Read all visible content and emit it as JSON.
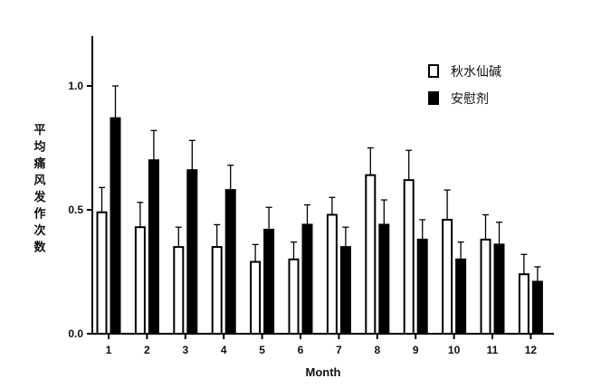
{
  "chart_data": {
    "type": "bar",
    "title": "",
    "xlabel": "Month",
    "ylabel": "平均痛风发作次数",
    "categories": [
      "1",
      "2",
      "3",
      "4",
      "5",
      "6",
      "7",
      "8",
      "9",
      "10",
      "11",
      "12"
    ],
    "ylim": [
      0,
      1.2
    ],
    "yticks": [
      0.0,
      0.5,
      1.0
    ],
    "ytick_labels": [
      "0.0",
      "0.5",
      "1.0"
    ],
    "grid": false,
    "legend_position": "top-right",
    "series": [
      {
        "name": "秋水仙碱",
        "fill": "#ffffff",
        "stroke": "#000000",
        "values": [
          0.49,
          0.43,
          0.35,
          0.35,
          0.29,
          0.3,
          0.48,
          0.64,
          0.62,
          0.46,
          0.38,
          0.24
        ],
        "errors": [
          0.1,
          0.1,
          0.08,
          0.09,
          0.07,
          0.07,
          0.07,
          0.11,
          0.12,
          0.12,
          0.1,
          0.08
        ]
      },
      {
        "name": "安慰剂",
        "fill": "#000000",
        "stroke": "#000000",
        "values": [
          0.87,
          0.7,
          0.66,
          0.58,
          0.42,
          0.44,
          0.35,
          0.44,
          0.38,
          0.3,
          0.36,
          0.21
        ],
        "errors": [
          0.13,
          0.12,
          0.12,
          0.1,
          0.09,
          0.08,
          0.08,
          0.1,
          0.08,
          0.07,
          0.09,
          0.06
        ]
      }
    ]
  }
}
